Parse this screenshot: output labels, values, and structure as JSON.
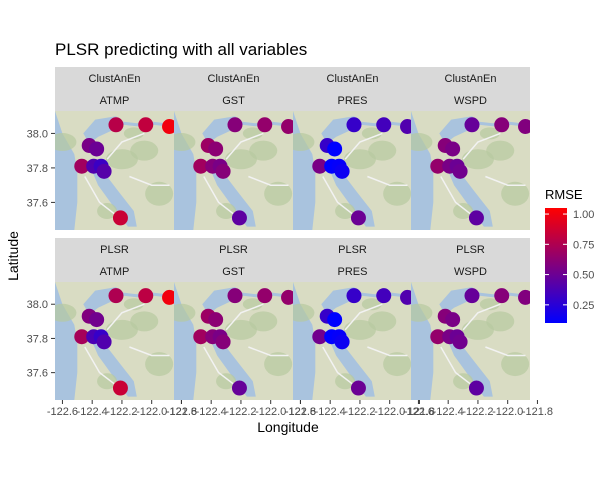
{
  "chart_data": {
    "type": "scatter",
    "title": "PLSR predicting with all variables",
    "xlabel": "Longitude",
    "ylabel": "Latitude",
    "xlim": [
      -122.65,
      -121.85
    ],
    "ylim": [
      37.44,
      38.13
    ],
    "x_ticks": [
      -122.6,
      -122.4,
      -122.2,
      -122.0,
      -121.8
    ],
    "x_tick_labels": [
      "-122.6",
      "-122.4",
      "-122.2",
      "-122.0",
      "-121.8"
    ],
    "y_ticks": [
      37.6,
      37.8,
      38.0
    ],
    "y_tick_labels": [
      "37.6",
      "37.8",
      "38.0"
    ],
    "facet_rows": [
      "ClustAnEn",
      "PLSR"
    ],
    "facet_cols": [
      "ATMP",
      "GST",
      "PRES",
      "WSPD"
    ],
    "background": "road map tiles of the San Francisco Bay Area",
    "color_scale": {
      "title": "RMSE",
      "low_color": "#0000ff",
      "high_color": "#ff0000",
      "range": [
        0.1,
        1.05
      ],
      "ticks": [
        0.25,
        0.5,
        0.75,
        1.0
      ],
      "tick_labels": [
        "0.25",
        "0.50",
        "0.75",
        "1.00"
      ]
    },
    "stations": [
      {
        "x": -122.24,
        "y": 38.05
      },
      {
        "x": -122.04,
        "y": 38.05
      },
      {
        "x": -121.88,
        "y": 38.04
      },
      {
        "x": -122.42,
        "y": 37.93
      },
      {
        "x": -122.37,
        "y": 37.91
      },
      {
        "x": -122.47,
        "y": 37.81
      },
      {
        "x": -122.39,
        "y": 37.81
      },
      {
        "x": -122.34,
        "y": 37.81
      },
      {
        "x": -122.32,
        "y": 37.78
      },
      {
        "x": -122.21,
        "y": 37.51
      }
    ],
    "panels": [
      {
        "row": "ClustAnEn",
        "col": "ATMP",
        "rmse": [
          0.78,
          0.82,
          1.0,
          0.55,
          0.5,
          0.7,
          0.4,
          0.32,
          0.42,
          0.85
        ]
      },
      {
        "row": "ClustAnEn",
        "col": "GST",
        "rmse": [
          0.6,
          0.65,
          0.65,
          0.68,
          0.62,
          0.7,
          0.6,
          0.55,
          0.6,
          0.45
        ]
      },
      {
        "row": "ClustAnEn",
        "col": "PRES",
        "rmse": [
          0.3,
          0.35,
          0.4,
          0.3,
          0.08,
          0.55,
          0.1,
          0.12,
          0.15,
          0.5
        ]
      },
      {
        "row": "ClustAnEn",
        "col": "WSPD",
        "rmse": [
          0.48,
          0.6,
          0.58,
          0.6,
          0.55,
          0.65,
          0.55,
          0.5,
          0.52,
          0.45
        ]
      },
      {
        "row": "PLSR",
        "col": "ATMP",
        "rmse": [
          0.75,
          0.8,
          1.0,
          0.58,
          0.52,
          0.72,
          0.38,
          0.3,
          0.4,
          0.85
        ]
      },
      {
        "row": "PLSR",
        "col": "GST",
        "rmse": [
          0.6,
          0.65,
          0.65,
          0.68,
          0.62,
          0.7,
          0.6,
          0.55,
          0.6,
          0.48
        ]
      },
      {
        "row": "PLSR",
        "col": "PRES",
        "rmse": [
          0.3,
          0.35,
          0.4,
          0.3,
          0.1,
          0.52,
          0.1,
          0.12,
          0.15,
          0.5
        ]
      },
      {
        "row": "PLSR",
        "col": "WSPD",
        "rmse": [
          0.48,
          0.6,
          0.58,
          0.6,
          0.55,
          0.65,
          0.55,
          0.5,
          0.52,
          0.45
        ]
      }
    ]
  }
}
